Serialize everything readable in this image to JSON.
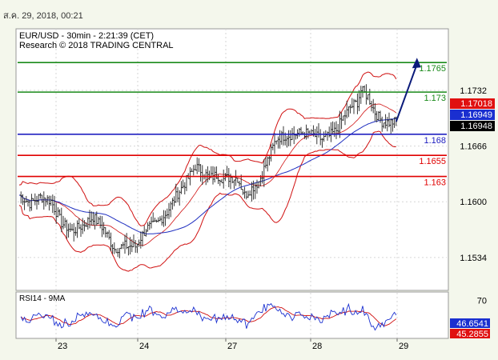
{
  "header": {
    "timestamp": "ส.ค. 29, 2018, 00:21"
  },
  "chart_data": [
    {
      "type": "candlestick",
      "title": "EUR/USD - 30min - 2:21:39 (CET)",
      "subtitle": "Research © 2018 TRADING CENTRAL",
      "ylim": [
        1.1495,
        1.1805
      ],
      "y_ticks": [
        1.1732,
        1.1666,
        1.16,
        1.1534
      ],
      "x_labels": [
        "23",
        "24",
        "27",
        "28",
        "29"
      ],
      "grid": true,
      "levels": [
        {
          "value": 1.1765,
          "label": "1.1765",
          "color": "#1a8a1a"
        },
        {
          "value": 1.173,
          "label": "1.173",
          "color": "#1a8a1a"
        },
        {
          "value": 1.168,
          "label": "1.168",
          "color": "#2020c0"
        },
        {
          "value": 1.1655,
          "label": "1.1655",
          "color": "#e00000"
        },
        {
          "value": 1.163,
          "label": "1.163",
          "color": "#e00000"
        }
      ],
      "price_boxes": [
        {
          "label": "1.17018",
          "value": 1.17018,
          "bg": "#e01010",
          "fg": "#ffffff"
        },
        {
          "label": "1.16949",
          "value": 1.16949,
          "bg": "#1a2fd0",
          "fg": "#ffffff"
        },
        {
          "label": "1.16948",
          "value": 1.16948,
          "bg": "#000000",
          "fg": "#ffffff"
        }
      ],
      "close_path": [
        [
          0,
          1.1608
        ],
        [
          6,
          1.1598
        ],
        [
          12,
          1.1606
        ],
        [
          18,
          1.1601
        ],
        [
          24,
          1.1575
        ],
        [
          30,
          1.1565
        ],
        [
          36,
          1.1572
        ],
        [
          42,
          1.1582
        ],
        [
          48,
          1.1568
        ],
        [
          54,
          1.1544
        ],
        [
          60,
          1.1548
        ],
        [
          66,
          1.1547
        ],
        [
          72,
          1.1568
        ],
        [
          78,
          1.1574
        ],
        [
          84,
          1.1588
        ],
        [
          90,
          1.161
        ],
        [
          96,
          1.1628
        ],
        [
          100,
          1.1642
        ],
        [
          104,
          1.1636
        ],
        [
          108,
          1.1628
        ],
        [
          112,
          1.1632
        ],
        [
          116,
          1.1627
        ],
        [
          120,
          1.1629
        ],
        [
          124,
          1.1628
        ],
        [
          128,
          1.1608
        ],
        [
          132,
          1.1616
        ],
        [
          136,
          1.1624
        ],
        [
          142,
          1.1654
        ],
        [
          146,
          1.1675
        ],
        [
          150,
          1.1678
        ],
        [
          156,
          1.168
        ],
        [
          162,
          1.1682
        ],
        [
          168,
          1.1678
        ],
        [
          172,
          1.1674
        ],
        [
          176,
          1.1678
        ],
        [
          180,
          1.1685
        ],
        [
          184,
          1.17
        ],
        [
          188,
          1.1712
        ],
        [
          192,
          1.1718
        ],
        [
          194,
          1.1732
        ],
        [
          198,
          1.1725
        ],
        [
          202,
          1.1706
        ],
        [
          206,
          1.1695
        ],
        [
          210,
          1.1694
        ],
        [
          214,
          1.1695
        ]
      ],
      "projection": [
        [
          214,
          1.1695
        ],
        [
          224,
          1.1765
        ]
      ],
      "rsi": {
        "label": "RSI14 - 9MA",
        "ylim": [
          25,
          80
        ],
        "tick": 70,
        "value_boxes": [
          {
            "label": "46.6541",
            "value": 46.6541,
            "bg": "#1a2fd0",
            "fg": "#ffffff"
          },
          {
            "label": "45.2855",
            "value": 45.2855,
            "bg": "#e01010",
            "fg": "#ffffff"
          }
        ]
      }
    }
  ]
}
